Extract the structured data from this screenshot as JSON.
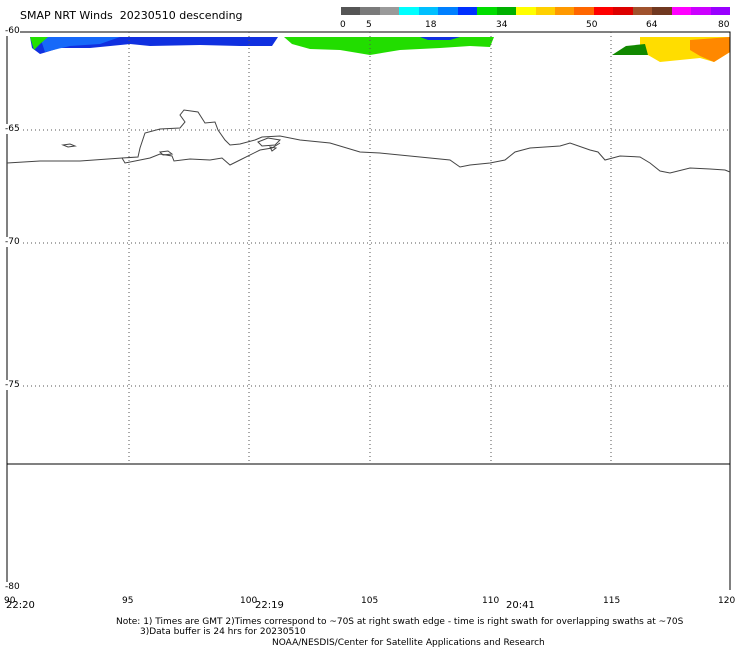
{
  "title": "SMAP NRT Winds  20230510 descending",
  "scale": {
    "labels": [
      "0",
      "5",
      "18",
      "34",
      "50",
      "64",
      "80"
    ],
    "colors": [
      "#555555",
      "#7a7a7a",
      "#9a9a9a",
      "#00ffff",
      "#00c0ff",
      "#0080ff",
      "#0030ff",
      "#00dd00",
      "#00b000",
      "#ffff00",
      "#ffd000",
      "#ff9900",
      "#ff6600",
      "#ff0000",
      "#dd0000",
      "#a0522d",
      "#703820",
      "#ff00ff",
      "#cc00ff",
      "#9900ff"
    ]
  },
  "axes": {
    "lat_labels": [
      "-60",
      "-65",
      "-70",
      "-75",
      "-80"
    ],
    "lon_labels": [
      "90",
      "95",
      "100",
      "105",
      "110",
      "115",
      "120"
    ]
  },
  "times": [
    "22:20",
    "22:19",
    "20:41"
  ],
  "notes": {
    "line1": "Note: 1) Times are GMT 2)Times correspond to ~70S at right swath edge - time is right swath for overlapping swaths at ~70S",
    "line2": "3)Data buffer is 24 hrs for 20230510",
    "line3": "NOAA/NESDIS/Center for Satellite Applications and Research"
  }
}
